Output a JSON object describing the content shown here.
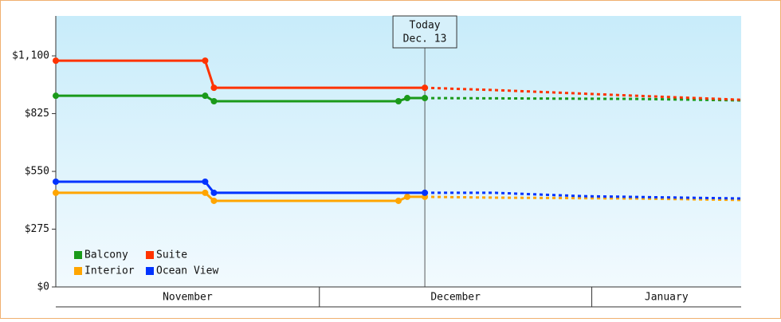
{
  "chart_data": {
    "type": "line",
    "xlim": [
      0,
      78
    ],
    "ylim": [
      0,
      1290
    ],
    "yticks": [
      {
        "value": 0,
        "label": "$0"
      },
      {
        "value": 275,
        "label": "$275"
      },
      {
        "value": 550,
        "label": "$550"
      },
      {
        "value": 825,
        "label": "$825"
      },
      {
        "value": 1100,
        "label": "$1,100"
      }
    ],
    "x_bands": [
      {
        "label": "November",
        "start": 0,
        "end": 30
      },
      {
        "label": "December",
        "start": 30,
        "end": 61
      },
      {
        "label": "January",
        "start": 61,
        "end": 78
      }
    ],
    "today": {
      "x": 42,
      "lines": [
        "Today",
        "Dec. 13"
      ]
    },
    "legend": "bottom-left",
    "series": [
      {
        "name": "Balcony",
        "color": "#1a9a1a",
        "x": [
          0,
          17,
          18,
          39,
          40,
          42,
          66,
          78
        ],
        "values": [
          910,
          910,
          884,
          884,
          899,
          899,
          895,
          888
        ]
      },
      {
        "name": "Suite",
        "color": "#ff3300",
        "x": [
          0,
          17,
          18,
          42,
          50,
          66,
          78
        ],
        "values": [
          1077,
          1077,
          948,
          948,
          937,
          910,
          891
        ]
      },
      {
        "name": "Interior",
        "color": "#ffa500",
        "x": [
          0,
          17,
          18,
          39,
          40,
          42,
          50,
          66,
          78
        ],
        "values": [
          448,
          448,
          410,
          410,
          429,
          429,
          425,
          421,
          414
        ]
      },
      {
        "name": "Ocean View",
        "color": "#0033ff",
        "x": [
          0,
          17,
          18,
          42,
          50,
          60,
          78
        ],
        "values": [
          501,
          501,
          448,
          448,
          448,
          432,
          421
        ]
      }
    ]
  }
}
